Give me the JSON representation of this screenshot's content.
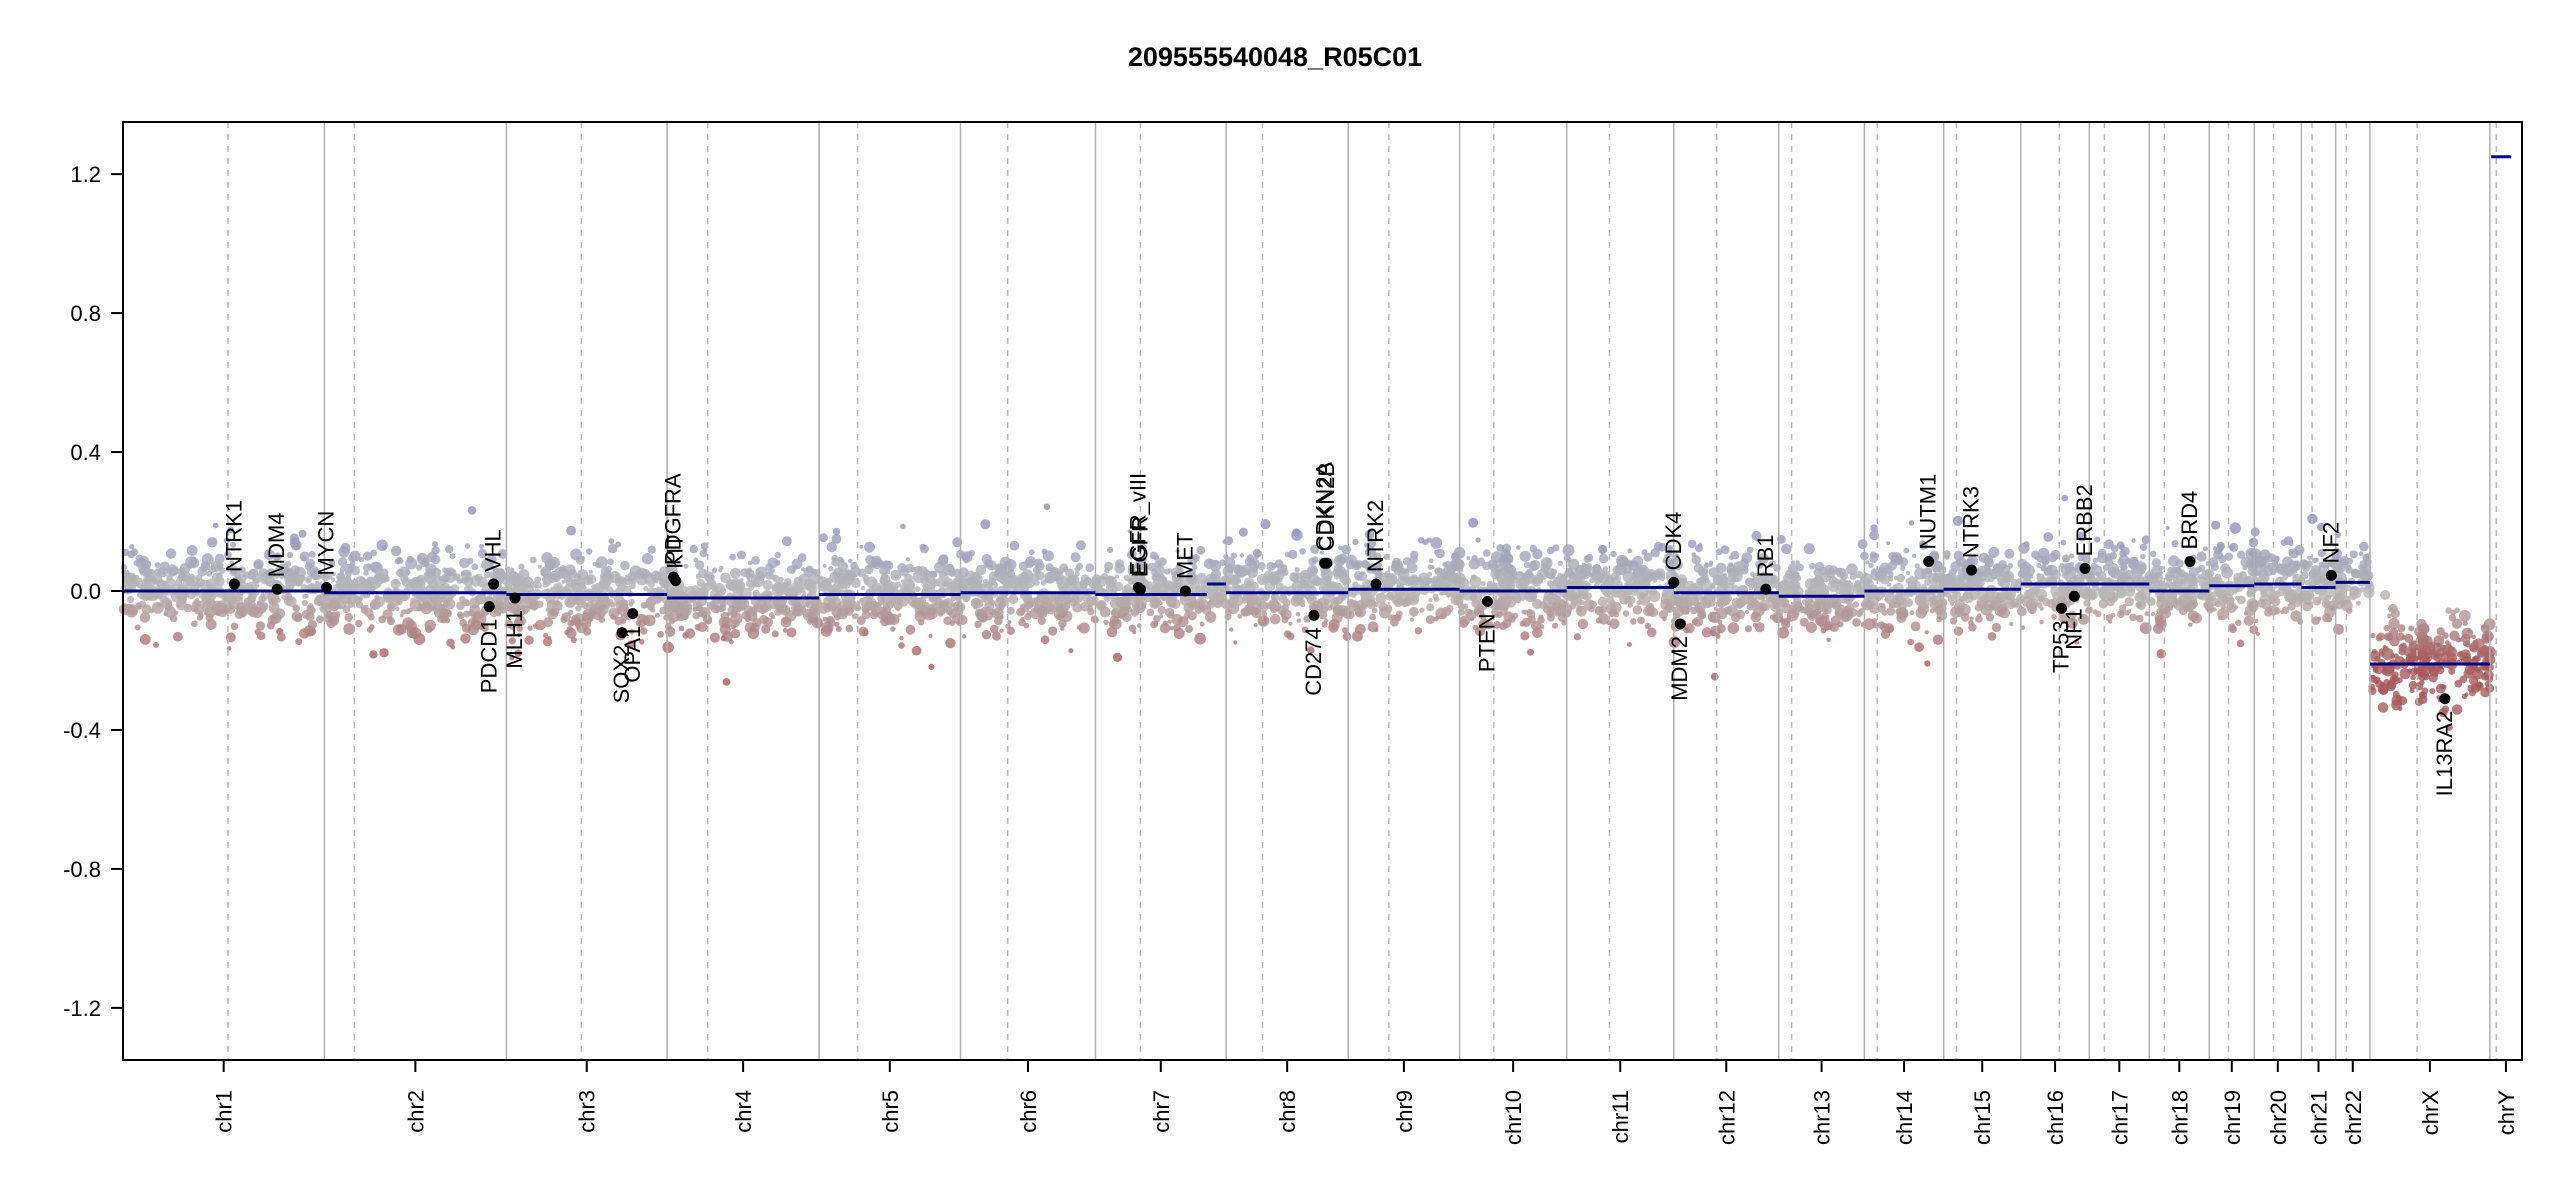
{
  "chart_data": {
    "type": "scatter",
    "title": "209555540048_R05C01",
    "xlabel": "",
    "ylabel": "",
    "ylim": [
      -1.35,
      1.35
    ],
    "yticks": [
      1.2,
      0.8,
      0.4,
      0.0,
      -0.4,
      -0.8,
      -1.2
    ],
    "ytick_labels": [
      "1.2",
      "0.8",
      "0.4",
      "0.0",
      "-0.4",
      "-0.8",
      "-1.2"
    ],
    "grid": false,
    "colors": {
      "segment": "#00008b",
      "gain": "#8f8fbf",
      "loss": "#a85a5a",
      "neutral": "#b8b8b8",
      "gene_point": "#000000"
    },
    "chromosomes": [
      {
        "name": "chr1",
        "start": 0.0,
        "end": 47.0,
        "centromere": 24.5,
        "segments": [
          {
            "x0": 0.0,
            "x1": 47.0,
            "y": 0.0
          }
        ]
      },
      {
        "name": "chr2",
        "start": 47.0,
        "end": 89.5,
        "centromere": 54.0,
        "segments": [
          {
            "x0": 47.0,
            "x1": 89.5,
            "y": -0.005
          }
        ]
      },
      {
        "name": "chr3",
        "start": 89.5,
        "end": 127.0,
        "centromere": 107.0,
        "segments": [
          {
            "x0": 89.5,
            "x1": 127.0,
            "y": -0.01
          }
        ]
      },
      {
        "name": "chr4",
        "start": 127.0,
        "end": 162.5,
        "centromere": 136.5,
        "segments": [
          {
            "x0": 127.0,
            "x1": 162.5,
            "y": -0.02
          }
        ]
      },
      {
        "name": "chr5",
        "start": 162.5,
        "end": 195.5,
        "centromere": 171.5,
        "segments": [
          {
            "x0": 162.5,
            "x1": 195.5,
            "y": -0.01
          }
        ]
      },
      {
        "name": "chr6",
        "start": 195.5,
        "end": 227.0,
        "centromere": 206.5,
        "segments": [
          {
            "x0": 195.5,
            "x1": 227.0,
            "y": -0.005
          }
        ]
      },
      {
        "name": "chr7",
        "start": 227.0,
        "end": 257.5,
        "centromere": 237.5,
        "segments": [
          {
            "x0": 227.0,
            "x1": 253.0,
            "y": -0.01
          },
          {
            "x0": 253.0,
            "x1": 257.5,
            "y": 0.02
          }
        ]
      },
      {
        "name": "chr8",
        "start": 257.5,
        "end": 286.0,
        "centromere": 266.0,
        "segments": [
          {
            "x0": 257.5,
            "x1": 286.0,
            "y": -0.005
          }
        ]
      },
      {
        "name": "chr9",
        "start": 286.0,
        "end": 312.0,
        "centromere": 295.5,
        "segments": [
          {
            "x0": 286.0,
            "x1": 312.0,
            "y": 0.005
          }
        ]
      },
      {
        "name": "chr10",
        "start": 312.0,
        "end": 337.0,
        "centromere": 320.0,
        "segments": [
          {
            "x0": 312.0,
            "x1": 337.0,
            "y": 0.0
          }
        ]
      },
      {
        "name": "chr11",
        "start": 337.0,
        "end": 362.0,
        "centromere": 347.0,
        "segments": [
          {
            "x0": 337.0,
            "x1": 362.0,
            "y": 0.01
          }
        ]
      },
      {
        "name": "chr12",
        "start": 362.0,
        "end": 386.5,
        "centromere": 372.0,
        "segments": [
          {
            "x0": 362.0,
            "x1": 386.5,
            "y": -0.005
          }
        ]
      },
      {
        "name": "chr13",
        "start": 386.5,
        "end": 406.5,
        "centromere": 389.5,
        "segments": [
          {
            "x0": 386.5,
            "x1": 406.5,
            "y": -0.015
          }
        ]
      },
      {
        "name": "chr14",
        "start": 406.5,
        "end": 425.0,
        "centromere": 409.5,
        "segments": [
          {
            "x0": 406.5,
            "x1": 425.0,
            "y": 0.0
          }
        ]
      },
      {
        "name": "chr15",
        "start": 425.0,
        "end": 443.0,
        "centromere": 428.0,
        "segments": [
          {
            "x0": 425.0,
            "x1": 443.0,
            "y": 0.005
          }
        ]
      },
      {
        "name": "chr16",
        "start": 443.0,
        "end": 459.0,
        "centromere": 452.0,
        "segments": [
          {
            "x0": 443.0,
            "x1": 459.0,
            "y": 0.02
          }
        ]
      },
      {
        "name": "chr17",
        "start": 459.0,
        "end": 473.0,
        "centromere": 462.5,
        "segments": [
          {
            "x0": 459.0,
            "x1": 473.0,
            "y": 0.02
          }
        ]
      },
      {
        "name": "chr18",
        "start": 473.0,
        "end": 487.0,
        "centromere": 476.5,
        "segments": [
          {
            "x0": 473.0,
            "x1": 487.0,
            "y": 0.0
          }
        ]
      },
      {
        "name": "chr19",
        "start": 487.0,
        "end": 497.5,
        "centromere": 491.5,
        "segments": [
          {
            "x0": 487.0,
            "x1": 497.5,
            "y": 0.015
          }
        ]
      },
      {
        "name": "chr20",
        "start": 497.5,
        "end": 508.5,
        "centromere": 502.0,
        "segments": [
          {
            "x0": 497.5,
            "x1": 508.5,
            "y": 0.02
          }
        ]
      },
      {
        "name": "chr21",
        "start": 508.5,
        "end": 516.5,
        "centromere": 511.0,
        "segments": [
          {
            "x0": 508.5,
            "x1": 516.5,
            "y": 0.01
          }
        ]
      },
      {
        "name": "chr22",
        "start": 516.5,
        "end": 524.5,
        "centromere": 519.0,
        "segments": [
          {
            "x0": 516.5,
            "x1": 524.5,
            "y": 0.025
          }
        ]
      },
      {
        "name": "chrX",
        "start": 524.5,
        "end": 552.5,
        "centromere": 535.5,
        "segments": [
          {
            "x0": 524.5,
            "x1": 552.5,
            "y": -0.21
          }
        ]
      },
      {
        "name": "chrY",
        "start": 552.5,
        "end": 560.0,
        "centromere": 554.0,
        "segments": [
          {
            "x0": 552.8,
            "x1": 557.5,
            "y": 1.25
          }
        ]
      }
    ],
    "genes": [
      {
        "name": "NTRK1",
        "x": 26.0,
        "y": 0.02
      },
      {
        "name": "MDM4",
        "x": 36.0,
        "y": 0.005
      },
      {
        "name": "MYCN",
        "x": 47.5,
        "y": 0.01
      },
      {
        "name": "VHL",
        "x": 86.5,
        "y": 0.02
      },
      {
        "name": "PDCD1",
        "x": 85.5,
        "y": -0.045
      },
      {
        "name": "MLH1",
        "x": 91.5,
        "y": -0.02
      },
      {
        "name": "SOX2",
        "x": 116.5,
        "y": -0.12
      },
      {
        "name": "OPA1",
        "x": 119.0,
        "y": -0.065
      },
      {
        "name": "PDGFRA",
        "x": 128.5,
        "y": 0.04
      },
      {
        "name": "KIT",
        "x": 129.0,
        "y": 0.03
      },
      {
        "name": "EGFR_vIII",
        "x": 237.0,
        "y": 0.01
      },
      {
        "name": "EGFR",
        "x": 237.5,
        "y": 0.005
      },
      {
        "name": "MET",
        "x": 248.0,
        "y": 0.0
      },
      {
        "name": "CDKN2A",
        "x": 280.5,
        "y": 0.08
      },
      {
        "name": "CDKN2B",
        "x": 281.0,
        "y": 0.08
      },
      {
        "name": "CD274",
        "x": 278.0,
        "y": -0.07
      },
      {
        "name": "NTRK2",
        "x": 292.5,
        "y": 0.02
      },
      {
        "name": "PTEN",
        "x": 318.5,
        "y": -0.03
      },
      {
        "name": "CDK4",
        "x": 362.0,
        "y": 0.025
      },
      {
        "name": "MDM2",
        "x": 363.5,
        "y": -0.095
      },
      {
        "name": "RB1",
        "x": 383.5,
        "y": 0.005
      },
      {
        "name": "NUTM1",
        "x": 421.5,
        "y": 0.085
      },
      {
        "name": "NTRK3",
        "x": 431.5,
        "y": 0.06
      },
      {
        "name": "TP53",
        "x": 452.5,
        "y": -0.05
      },
      {
        "name": "NF1",
        "x": 455.5,
        "y": -0.015
      },
      {
        "name": "ERBB2",
        "x": 458.0,
        "y": 0.065
      },
      {
        "name": "BRD4",
        "x": 482.5,
        "y": 0.085
      },
      {
        "name": "NF2",
        "x": 515.5,
        "y": 0.045
      },
      {
        "name": "IL13RA2",
        "x": 542.0,
        "y": -0.31
      }
    ]
  }
}
